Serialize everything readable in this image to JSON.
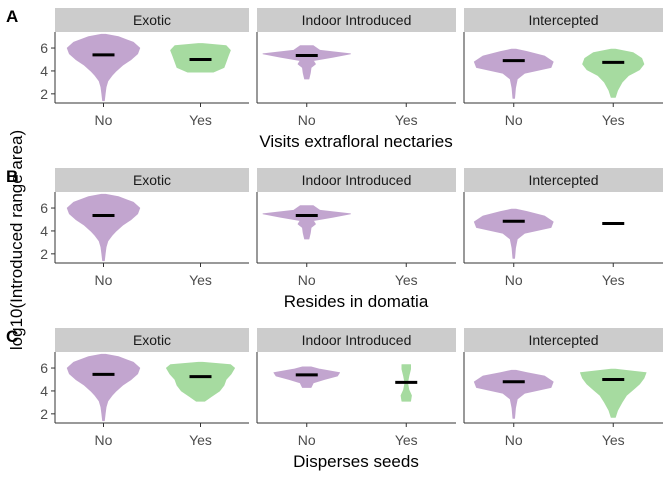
{
  "colors": {
    "No": "#c2a5cf",
    "Yes": "#a6dba0",
    "strip": "#cccccc",
    "median": "#000000"
  },
  "chart_data": [
    {
      "tag": "A",
      "type": "violin",
      "xlabel": "Visits extrafloral nectaries",
      "ylabel": "log10(Introduced range area)",
      "ylim": [
        1.2,
        7.4
      ],
      "yticks": [
        "2",
        "4",
        "6"
      ],
      "categories": [
        "No",
        "Yes"
      ],
      "facets": [
        {
          "name": "Exotic",
          "groups": [
            {
              "category": "No",
              "median": 5.4,
              "profile": [
                [
                  1.4,
                  0.02
                ],
                [
                  2.0,
                  0.04
                ],
                [
                  2.6,
                  0.06
                ],
                [
                  3.1,
                  0.1
                ],
                [
                  3.6,
                  0.2
                ],
                [
                  4.0,
                  0.3
                ],
                [
                  4.5,
                  0.45
                ],
                [
                  5.0,
                  0.65
                ],
                [
                  5.5,
                  0.8
                ],
                [
                  6.0,
                  0.85
                ],
                [
                  6.5,
                  0.7
                ],
                [
                  7.0,
                  0.35
                ],
                [
                  7.2,
                  0.05
                ]
              ]
            },
            {
              "category": "Yes",
              "median": 5.0,
              "profile": [
                [
                  3.9,
                  0.3
                ],
                [
                  4.3,
                  0.55
                ],
                [
                  4.8,
                  0.6
                ],
                [
                  5.3,
                  0.65
                ],
                [
                  5.8,
                  0.7
                ],
                [
                  6.2,
                  0.6
                ],
                [
                  6.4,
                  0.05
                ]
              ]
            }
          ]
        },
        {
          "name": "Indoor Introduced",
          "groups": [
            {
              "category": "No",
              "median": 5.35,
              "profile": [
                [
                  3.3,
                  0.05
                ],
                [
                  3.8,
                  0.08
                ],
                [
                  4.3,
                  0.1
                ],
                [
                  4.6,
                  0.2
                ],
                [
                  4.9,
                  0.15
                ],
                [
                  5.2,
                  0.6
                ],
                [
                  5.5,
                  1.0
                ],
                [
                  5.8,
                  0.3
                ],
                [
                  6.2,
                  0.15
                ]
              ]
            }
          ]
        },
        {
          "name": "Intercepted",
          "groups": [
            {
              "category": "No",
              "median": 4.9,
              "profile": [
                [
                  1.6,
                  0.02
                ],
                [
                  2.5,
                  0.04
                ],
                [
                  3.3,
                  0.08
                ],
                [
                  3.8,
                  0.25
                ],
                [
                  4.3,
                  0.85
                ],
                [
                  4.8,
                  0.9
                ],
                [
                  5.3,
                  0.7
                ],
                [
                  5.7,
                  0.3
                ],
                [
                  5.9,
                  0.05
                ]
              ]
            },
            {
              "category": "Yes",
              "median": 4.75,
              "profile": [
                [
                  1.7,
                  0.05
                ],
                [
                  2.3,
                  0.1
                ],
                [
                  3.0,
                  0.2
                ],
                [
                  3.6,
                  0.35
                ],
                [
                  4.1,
                  0.6
                ],
                [
                  4.6,
                  0.7
                ],
                [
                  5.1,
                  0.65
                ],
                [
                  5.6,
                  0.45
                ],
                [
                  5.9,
                  0.05
                ]
              ]
            }
          ]
        }
      ]
    },
    {
      "tag": "B",
      "type": "violin",
      "xlabel": "Resides in domatia",
      "ylabel": "log10(Introduced range area)",
      "ylim": [
        1.2,
        7.4
      ],
      "yticks": [
        "2",
        "4",
        "6"
      ],
      "categories": [
        "No",
        "Yes"
      ],
      "facets": [
        {
          "name": "Exotic",
          "groups": [
            {
              "category": "No",
              "median": 5.35,
              "profile": [
                [
                  1.4,
                  0.02
                ],
                [
                  2.0,
                  0.04
                ],
                [
                  2.6,
                  0.06
                ],
                [
                  3.1,
                  0.1
                ],
                [
                  3.6,
                  0.2
                ],
                [
                  4.0,
                  0.3
                ],
                [
                  4.5,
                  0.45
                ],
                [
                  5.0,
                  0.65
                ],
                [
                  5.5,
                  0.8
                ],
                [
                  6.0,
                  0.85
                ],
                [
                  6.5,
                  0.7
                ],
                [
                  7.0,
                  0.35
                ],
                [
                  7.2,
                  0.05
                ]
              ]
            }
          ]
        },
        {
          "name": "Indoor Introduced",
          "groups": [
            {
              "category": "No",
              "median": 5.35,
              "profile": [
                [
                  3.3,
                  0.05
                ],
                [
                  3.8,
                  0.08
                ],
                [
                  4.3,
                  0.1
                ],
                [
                  4.6,
                  0.2
                ],
                [
                  4.9,
                  0.15
                ],
                [
                  5.2,
                  0.6
                ],
                [
                  5.5,
                  1.0
                ],
                [
                  5.8,
                  0.3
                ],
                [
                  6.2,
                  0.15
                ]
              ]
            }
          ]
        },
        {
          "name": "Intercepted",
          "groups": [
            {
              "category": "No",
              "median": 4.85,
              "profile": [
                [
                  1.6,
                  0.02
                ],
                [
                  2.5,
                  0.04
                ],
                [
                  3.3,
                  0.08
                ],
                [
                  3.8,
                  0.25
                ],
                [
                  4.3,
                  0.85
                ],
                [
                  4.8,
                  0.9
                ],
                [
                  5.3,
                  0.7
                ],
                [
                  5.7,
                  0.3
                ],
                [
                  5.9,
                  0.05
                ]
              ]
            },
            {
              "category": "Yes",
              "median": 4.65,
              "profile": []
            }
          ]
        }
      ]
    },
    {
      "tag": "C",
      "type": "violin",
      "xlabel": "Disperses seeds",
      "ylabel": "log10(Introduced range area)",
      "ylim": [
        1.2,
        7.4
      ],
      "yticks": [
        "2",
        "4",
        "6"
      ],
      "categories": [
        "No",
        "Yes"
      ],
      "facets": [
        {
          "name": "Exotic",
          "groups": [
            {
              "category": "No",
              "median": 5.45,
              "profile": [
                [
                  1.4,
                  0.02
                ],
                [
                  2.0,
                  0.04
                ],
                [
                  2.6,
                  0.06
                ],
                [
                  3.1,
                  0.1
                ],
                [
                  3.6,
                  0.2
                ],
                [
                  4.0,
                  0.3
                ],
                [
                  4.5,
                  0.45
                ],
                [
                  5.0,
                  0.65
                ],
                [
                  5.5,
                  0.8
                ],
                [
                  6.0,
                  0.85
                ],
                [
                  6.5,
                  0.7
                ],
                [
                  7.0,
                  0.35
                ],
                [
                  7.2,
                  0.05
                ]
              ]
            },
            {
              "category": "Yes",
              "median": 5.25,
              "profile": [
                [
                  3.1,
                  0.1
                ],
                [
                  3.5,
                  0.25
                ],
                [
                  4.0,
                  0.45
                ],
                [
                  4.5,
                  0.55
                ],
                [
                  5.0,
                  0.6
                ],
                [
                  5.5,
                  0.72
                ],
                [
                  6.0,
                  0.8
                ],
                [
                  6.3,
                  0.7
                ],
                [
                  6.5,
                  0.05
                ]
              ]
            }
          ]
        },
        {
          "name": "Indoor Introduced",
          "groups": [
            {
              "category": "No",
              "median": 5.4,
              "profile": [
                [
                  4.3,
                  0.1
                ],
                [
                  4.7,
                  0.15
                ],
                [
                  5.0,
                  0.4
                ],
                [
                  5.3,
                  0.7
                ],
                [
                  5.6,
                  0.75
                ],
                [
                  5.9,
                  0.3
                ],
                [
                  6.1,
                  0.1
                ]
              ]
            },
            {
              "category": "Yes",
              "median": 4.75,
              "profile": [
                [
                  3.1,
                  0.1
                ],
                [
                  3.6,
                  0.12
                ],
                [
                  4.1,
                  0.06
                ],
                [
                  4.7,
                  0.03
                ],
                [
                  5.3,
                  0.06
                ],
                [
                  5.9,
                  0.1
                ],
                [
                  6.3,
                  0.1
                ]
              ]
            }
          ]
        },
        {
          "name": "Intercepted",
          "groups": [
            {
              "category": "No",
              "median": 4.8,
              "profile": [
                [
                  1.6,
                  0.02
                ],
                [
                  2.5,
                  0.04
                ],
                [
                  3.3,
                  0.08
                ],
                [
                  3.8,
                  0.25
                ],
                [
                  4.3,
                  0.85
                ],
                [
                  4.8,
                  0.9
                ],
                [
                  5.3,
                  0.7
                ],
                [
                  5.6,
                  0.3
                ],
                [
                  5.8,
                  0.05
                ]
              ]
            },
            {
              "category": "Yes",
              "median": 5.0,
              "profile": [
                [
                  1.7,
                  0.05
                ],
                [
                  2.3,
                  0.1
                ],
                [
                  3.0,
                  0.2
                ],
                [
                  3.6,
                  0.3
                ],
                [
                  4.1,
                  0.45
                ],
                [
                  4.6,
                  0.6
                ],
                [
                  5.1,
                  0.7
                ],
                [
                  5.6,
                  0.75
                ],
                [
                  5.9,
                  0.05
                ]
              ]
            }
          ]
        }
      ]
    }
  ]
}
